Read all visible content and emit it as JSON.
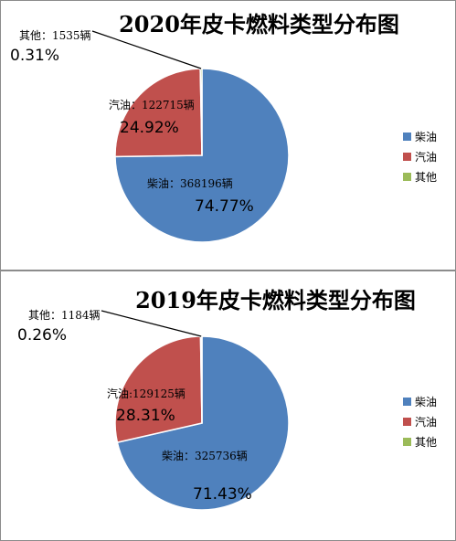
{
  "chart_data": [
    {
      "type": "pie",
      "title": "2020年皮卡燃料类型分布图",
      "categories": [
        "柴油",
        "汽油",
        "其他"
      ],
      "values": [
        368196,
        122715,
        1535
      ],
      "percents": [
        "74.77%",
        "24.92%",
        "0.31%"
      ],
      "data_labels": [
        "柴油：368196辆",
        "汽油：122715辆",
        "其他：1535辆"
      ],
      "colors": [
        "#4f81bd",
        "#c0504d",
        "#9bbb59"
      ],
      "legend_position": "right"
    },
    {
      "type": "pie",
      "title": "2019年皮卡燃料类型分布图",
      "categories": [
        "柴油",
        "汽油",
        "其他"
      ],
      "values": [
        325736,
        129125,
        1184
      ],
      "percents": [
        "71.43%",
        "28.31%",
        "0.26%"
      ],
      "data_labels": [
        "柴油：325736辆",
        "汽油:129125辆",
        "其他：1184辆"
      ],
      "colors": [
        "#4f81bd",
        "#c0504d",
        "#9bbb59"
      ],
      "legend_position": "right"
    }
  ]
}
